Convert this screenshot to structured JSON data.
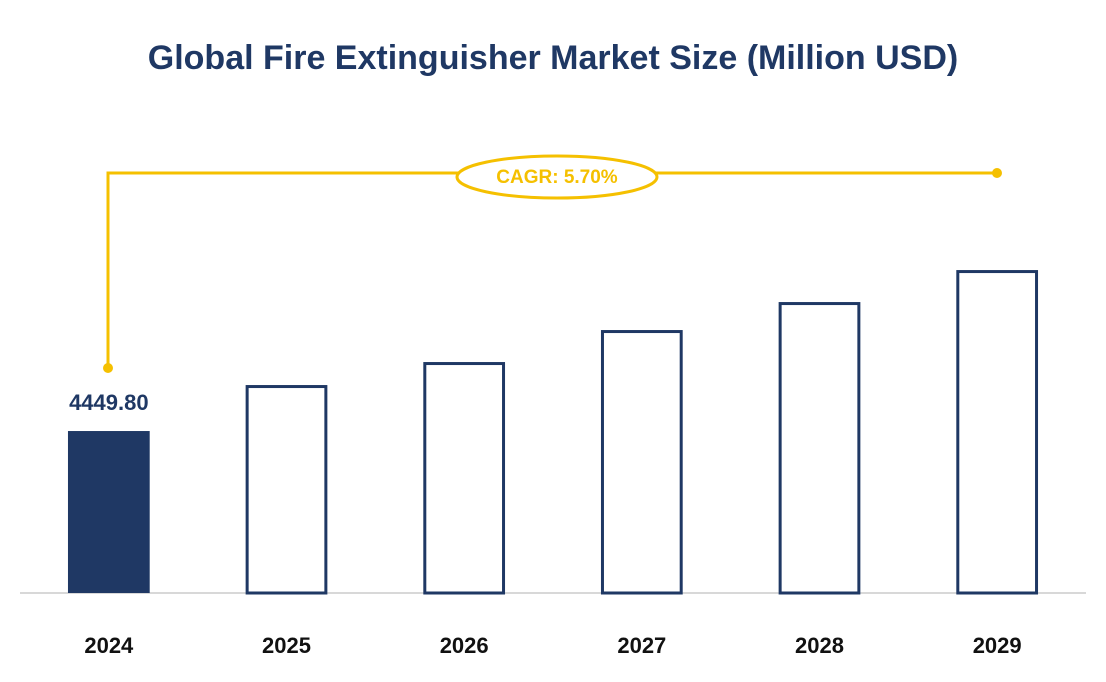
{
  "chart_data": {
    "type": "bar",
    "title": "Global Fire Extinguisher Market Size (Million USD)",
    "annotation": "CAGR: 5.70%",
    "categories": [
      "2024",
      "2025",
      "2026",
      "2027",
      "2028",
      "2029"
    ],
    "values": [
      4449.8,
      5713,
      6345,
      7224,
      7993,
      8872
    ],
    "value_labels": [
      "4449.80",
      null,
      null,
      null,
      null,
      null
    ],
    "color": "#1f3864",
    "ylim": [
      0,
      10000
    ]
  }
}
